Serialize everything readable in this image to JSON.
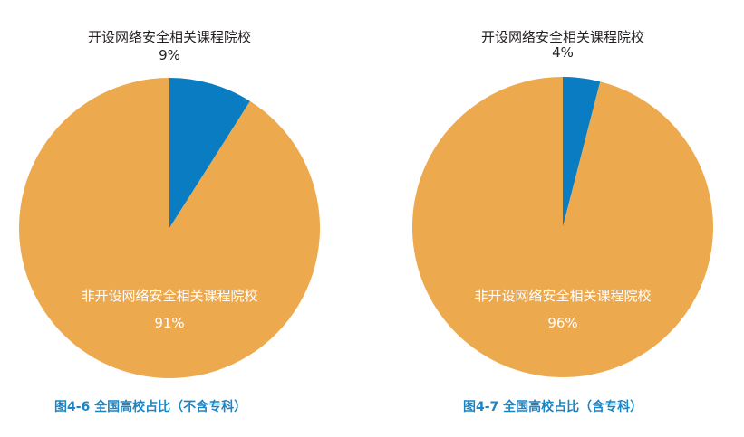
{
  "colors": {
    "slice_primary": "#0A7DC2",
    "slice_secondary": "#EDA94D",
    "label_outside": "#231F20",
    "label_inside": "#FFFFFF",
    "caption": "#1E85C4"
  },
  "chart_data": [
    {
      "type": "pie",
      "title": "图4-6 全国高校占比（不含专科）",
      "slices": [
        {
          "label": "开设网络安全相关课程院校",
          "value": 9,
          "value_label": "9%"
        },
        {
          "label": "非开设网络安全相关课程院校",
          "value": 91,
          "value_label": "91%"
        }
      ]
    },
    {
      "type": "pie",
      "title": "图4-7 全国高校占比（含专科）",
      "slices": [
        {
          "label": "开设网络安全相关课程院校",
          "value": 4,
          "value_label": "4%"
        },
        {
          "label": "非开设网络安全相关课程院校",
          "value": 96,
          "value_label": "96%"
        }
      ]
    }
  ]
}
